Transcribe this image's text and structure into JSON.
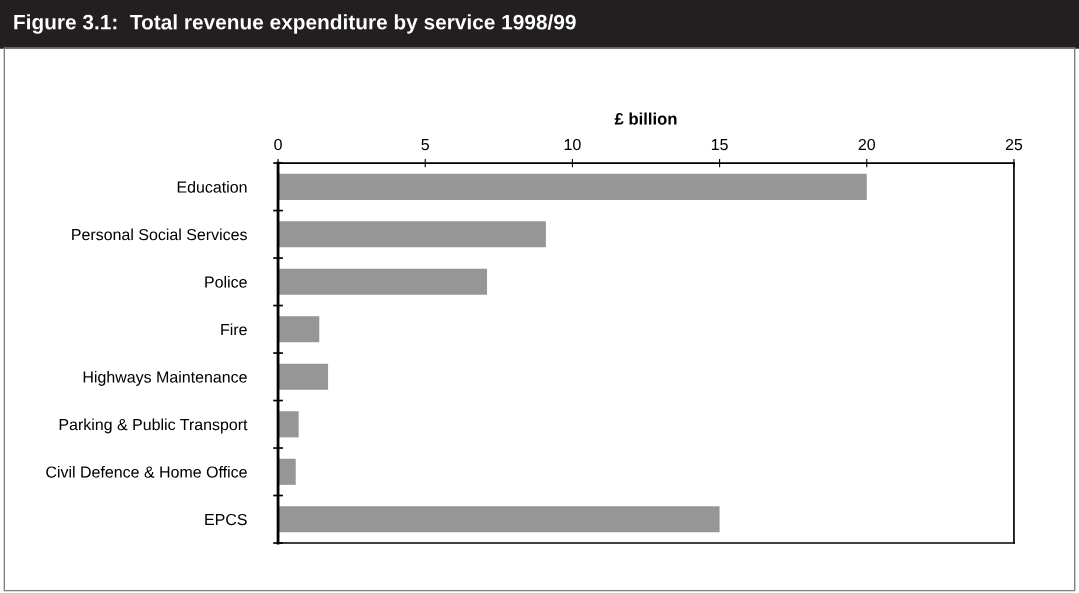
{
  "chart_data": {
    "type": "bar",
    "orientation": "horizontal",
    "title": "Figure 3.1:  Total revenue expenditure by service 1998/99",
    "xlabel": "£ billion",
    "categories": [
      "Education",
      "Personal Social Services",
      "Police",
      "Fire",
      "Highways Maintenance",
      "Parking & Public Transport",
      "Civil Defence & Home Office",
      "EPCS"
    ],
    "values": [
      20.0,
      9.1,
      7.1,
      1.4,
      1.7,
      0.7,
      0.6,
      15.0
    ],
    "color": "#969696",
    "xlim": [
      0,
      25
    ],
    "xticks": [
      0,
      5,
      10,
      15,
      20,
      25
    ],
    "grid": false,
    "legend": false
  }
}
